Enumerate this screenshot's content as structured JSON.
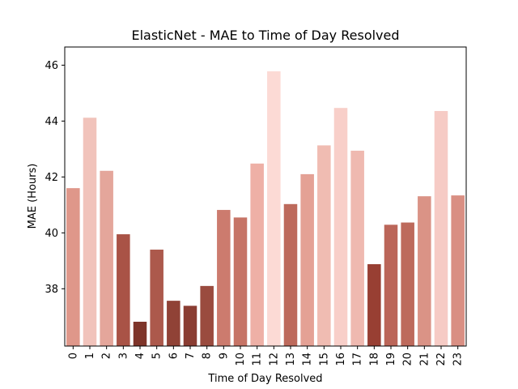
{
  "chart_data": {
    "type": "bar",
    "title": "ElasticNet - MAE to Time of Day Resolved",
    "xlabel": "Time of Day Resolved",
    "ylabel": "MAE (Hours)",
    "categories": [
      "0",
      "1",
      "2",
      "3",
      "4",
      "5",
      "6",
      "7",
      "8",
      "9",
      "10",
      "11",
      "12",
      "13",
      "14",
      "15",
      "16",
      "17",
      "18",
      "19",
      "20",
      "21",
      "22",
      "23"
    ],
    "values": [
      41.6,
      44.12,
      42.22,
      39.95,
      36.82,
      39.4,
      37.57,
      37.39,
      38.1,
      40.82,
      40.55,
      42.48,
      45.78,
      41.03,
      42.1,
      43.13,
      44.47,
      42.94,
      38.88,
      40.29,
      40.37,
      41.31,
      44.36,
      41.34
    ],
    "colors": [
      "#df978a",
      "#f1c3bb",
      "#e4a69b",
      "#a95346",
      "#7e3429",
      "#ac594c",
      "#904236",
      "#8a3d32",
      "#9a4b3f",
      "#cc7b6e",
      "#c67466",
      "#eeb0a6",
      "#fcdad5",
      "#bd6a5c",
      "#e4a195",
      "#f0bcb2",
      "#f8cfc9",
      "#efb9b0",
      "#983f33",
      "#bb6659",
      "#bd6a5c",
      "#da9386",
      "#f6cbc5",
      "#d98f83"
    ],
    "yticks": [
      38,
      40,
      42,
      44,
      46
    ],
    "ylim": [
      35.95,
      46.65
    ],
    "grid": false,
    "orientation": "x-tick-labels-rotated-vertical"
  }
}
